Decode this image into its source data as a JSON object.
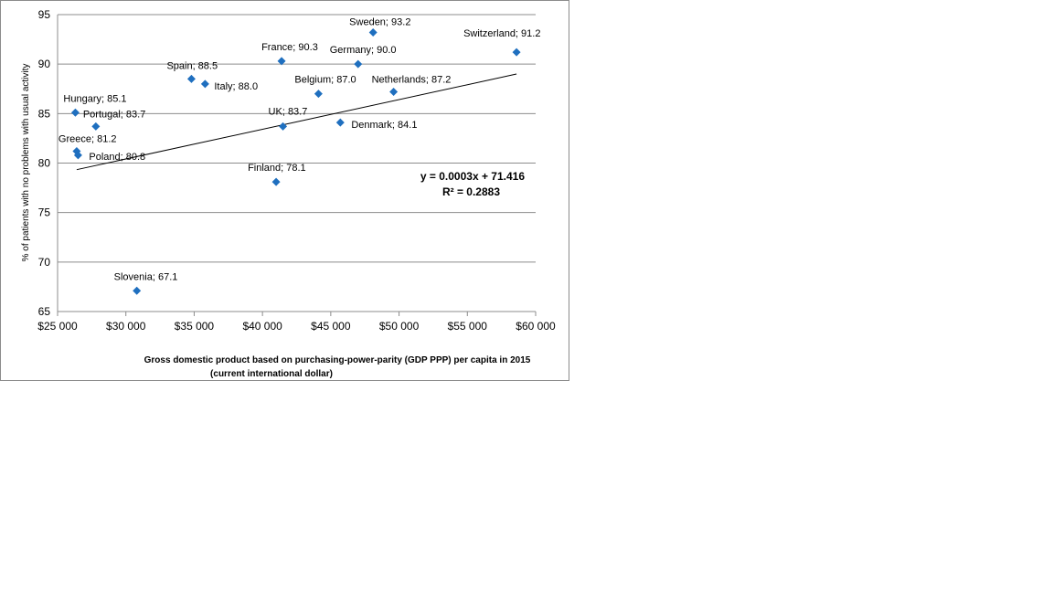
{
  "chart_data": {
    "type": "scatter",
    "title": "",
    "xlabel_line1": "Gross domestic product based on purchasing-power-parity (GDP PPP) per capita in 2015",
    "xlabel_line2": "(current international dollar)",
    "ylabel": "% of patients with no problems with usual activity",
    "xlim": [
      25000,
      60000
    ],
    "ylim": [
      65,
      95
    ],
    "x_ticks": [
      25000,
      30000,
      35000,
      40000,
      45000,
      50000,
      55000,
      60000
    ],
    "x_tick_labels": [
      "$25 000",
      "$30 000",
      "$35 000",
      "$40 000",
      "$45 000",
      "$50 000",
      "$55 000",
      "$60 000"
    ],
    "y_ticks": [
      65,
      70,
      75,
      80,
      85,
      90,
      95
    ],
    "y_tick_labels": [
      "65",
      "70",
      "75",
      "80",
      "85",
      "90",
      "95"
    ],
    "grid": "horizontal",
    "marker_color": "#1f6fbf",
    "points": [
      {
        "label": "Sweden; 93.2",
        "x": 48100,
        "y": 93.2
      },
      {
        "label": "Switzerland; 91.2",
        "x": 58600,
        "y": 91.2
      },
      {
        "label": "France; 90.3",
        "x": 41400,
        "y": 90.3
      },
      {
        "label": "Germany; 90.0",
        "x": 47000,
        "y": 90.0
      },
      {
        "label": "Spain; 88.5",
        "x": 34800,
        "y": 88.5
      },
      {
        "label": "Italy; 88.0",
        "x": 35800,
        "y": 88.0
      },
      {
        "label": "Netherlands; 87.2",
        "x": 49600,
        "y": 87.2
      },
      {
        "label": "Belgium; 87.0",
        "x": 44100,
        "y": 87.0
      },
      {
        "label": "Hungary; 85.1",
        "x": 26300,
        "y": 85.1
      },
      {
        "label": "Denmark; 84.1",
        "x": 45700,
        "y": 84.1
      },
      {
        "label": "Portugal; 83.7",
        "x": 27800,
        "y": 83.7
      },
      {
        "label": "UK; 83.7",
        "x": 41500,
        "y": 83.7
      },
      {
        "label": "Greece; 81.2",
        "x": 26400,
        "y": 81.2
      },
      {
        "label": "Poland; 80.8",
        "x": 26500,
        "y": 80.8
      },
      {
        "label": "Finland; 78.1",
        "x": 41000,
        "y": 78.1
      },
      {
        "label": "Slovenia; 67.1",
        "x": 30800,
        "y": 67.1
      }
    ],
    "trendline": {
      "slope": 0.0003,
      "intercept": 71.416,
      "x_range": [
        26400,
        58600
      ],
      "equation": "y = 0.0003x + 71.416",
      "r_squared": "R² = 0.2883"
    }
  }
}
